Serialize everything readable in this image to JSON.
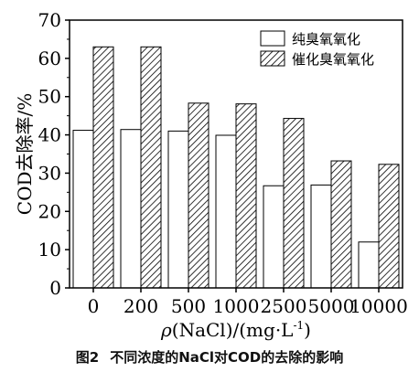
{
  "chart_data": {
    "type": "bar",
    "categories": [
      "0",
      "200",
      "500",
      "1000",
      "2500",
      "5000",
      "10000"
    ],
    "series": [
      {
        "name": "纯臭氧氧化",
        "values": [
          41.2,
          41.4,
          41.0,
          39.9,
          26.7,
          26.9,
          12.0
        ],
        "color": "#ffffff"
      },
      {
        "name": "催化臭氧氧化",
        "values": [
          63.0,
          63.0,
          48.3,
          48.1,
          44.3,
          33.2,
          32.3
        ],
        "color": "#ffffff",
        "pattern": "diagonal-hatch"
      }
    ],
    "title": "",
    "xlabel_main": "ρ",
    "xlabel_rest": "(NaCl)/(mg·L",
    "xlabel_sup": "-1",
    "xlabel_end": ")",
    "ylabel": "COD去除率/%",
    "ylim": [
      0,
      70
    ],
    "yticks": [
      "0",
      "10",
      "20",
      "30",
      "40",
      "50",
      "60",
      "70"
    ],
    "grid": false,
    "legend_position": "top-right"
  },
  "caption": {
    "number": "图2",
    "text": "不同浓度的NaCl对COD的去除的影响"
  }
}
